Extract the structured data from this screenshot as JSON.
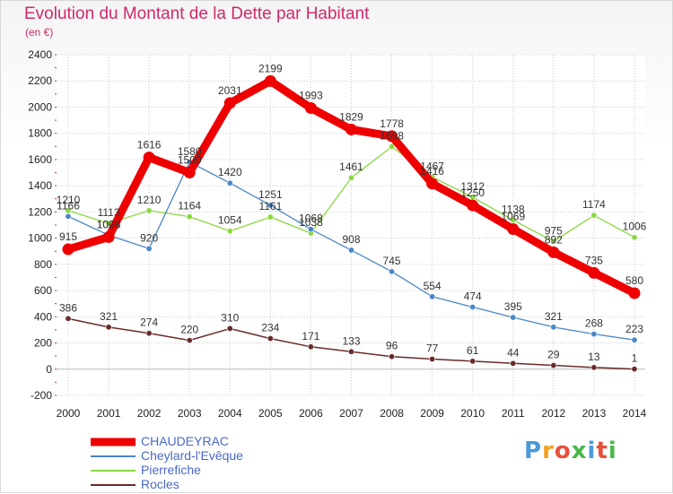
{
  "chart_data": {
    "type": "line",
    "title": "Evolution du Montant de la Dette par Habitant",
    "subtitle": "(en €)",
    "categories": [
      "2000",
      "2001",
      "2002",
      "2003",
      "2004",
      "2005",
      "2006",
      "2007",
      "2008",
      "2009",
      "2010",
      "2011",
      "2012",
      "2013",
      "2014"
    ],
    "ylim": [
      -200,
      2400
    ],
    "yticks": [
      -200,
      0,
      200,
      400,
      600,
      800,
      1000,
      1200,
      1400,
      1600,
      1800,
      2000,
      2200,
      2400
    ],
    "grid": true,
    "legend_position": "bottom-left",
    "series": [
      {
        "name": "CHAUDEYRAC",
        "color": "#ee0000",
        "values": [
          915,
          1008,
          1616,
          1500,
          2031,
          2199,
          1993,
          1829,
          1778,
          1416,
          1250,
          1069,
          892,
          735,
          580
        ]
      },
      {
        "name": "Cheylard-l'Evêque",
        "color": "#4a86c8",
        "values": [
          1166,
          1023,
          920,
          1580,
          1420,
          1251,
          1068,
          908,
          745,
          554,
          474,
          395,
          321,
          268,
          223
        ]
      },
      {
        "name": "Pierrefiche",
        "color": "#8ad840",
        "values": [
          1210,
          1113,
          1210,
          1164,
          1054,
          1161,
          1038,
          1461,
          1698,
          1467,
          1312,
          1138,
          975,
          1174,
          1006
        ]
      },
      {
        "name": "Rocles",
        "color": "#6a2a2a",
        "values": [
          386,
          321,
          274,
          220,
          310,
          234,
          171,
          133,
          96,
          77,
          61,
          44,
          29,
          13,
          1
        ]
      }
    ]
  },
  "logo": {
    "text": "Proxiti",
    "colors": [
      "#4a9ad8",
      "#f0a020",
      "#e8503a",
      "#48b848",
      "#4a9ad8",
      "#e8503a",
      "#48b848"
    ]
  }
}
